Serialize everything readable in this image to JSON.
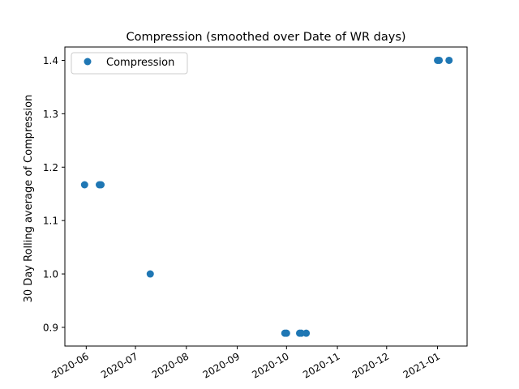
{
  "chart_data": {
    "type": "scatter",
    "title": "Compression  (smoothed over Date of WR days)",
    "xlabel": "",
    "ylabel": "30 Day Rolling average of Compression",
    "xlim": [
      "2020-05-19",
      "2021-01-19"
    ],
    "ylim": [
      0.865,
      1.425
    ],
    "x_ticks": [
      "2020-06",
      "2020-07",
      "2020-08",
      "2020-09",
      "2020-10",
      "2020-11",
      "2020-12",
      "2021-01"
    ],
    "y_ticks": [
      "0.9",
      "1.0",
      "1.1",
      "1.2",
      "1.3",
      "1.4"
    ],
    "legend": {
      "position": "top-left",
      "entries": [
        "Compression"
      ]
    },
    "grid": false,
    "series": [
      {
        "name": "Compression",
        "color": "#1f77b4",
        "points": [
          {
            "x": "2020-05-31",
            "y": 1.167
          },
          {
            "x": "2020-06-09",
            "y": 1.167
          },
          {
            "x": "2020-06-10",
            "y": 1.167
          },
          {
            "x": "2020-07-10",
            "y": 1.0
          },
          {
            "x": "2020-09-30",
            "y": 0.889
          },
          {
            "x": "2020-10-01",
            "y": 0.889
          },
          {
            "x": "2020-10-09",
            "y": 0.889
          },
          {
            "x": "2020-10-10",
            "y": 0.889
          },
          {
            "x": "2020-10-13",
            "y": 0.889
          },
          {
            "x": "2021-01-01",
            "y": 1.4
          },
          {
            "x": "2021-01-02",
            "y": 1.4
          },
          {
            "x": "2021-01-08",
            "y": 1.4
          }
        ]
      }
    ]
  }
}
